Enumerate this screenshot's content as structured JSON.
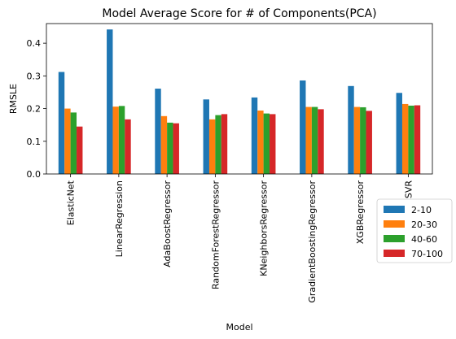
{
  "chart_data": {
    "type": "bar",
    "title": "Model Average Score for # of Components(PCA)",
    "xlabel": "Model",
    "ylabel": "RMSLE",
    "ylim": [
      0,
      0.46
    ],
    "yticks": [
      "0.0",
      "0.1",
      "0.2",
      "0.3",
      "0.4"
    ],
    "categories": [
      "ElasticNet",
      "LinearRegression",
      "AdaBoostRegressor",
      "RandomForestRegressor",
      "KNeighborsRegressor",
      "GradientBoostingRegressor",
      "XGBRegressor",
      "SVR"
    ],
    "series": [
      {
        "name": "2-10",
        "color": "#1f77b4",
        "values": [
          0.312,
          0.442,
          0.261,
          0.228,
          0.234,
          0.286,
          0.269,
          0.248
        ]
      },
      {
        "name": "20-30",
        "color": "#ff7f0e",
        "values": [
          0.2,
          0.206,
          0.177,
          0.167,
          0.194,
          0.205,
          0.205,
          0.214
        ]
      },
      {
        "name": "40-60",
        "color": "#2ca02c",
        "values": [
          0.188,
          0.208,
          0.157,
          0.18,
          0.185,
          0.205,
          0.204,
          0.209
        ]
      },
      {
        "name": "70-100",
        "color": "#d62728",
        "values": [
          0.145,
          0.167,
          0.155,
          0.183,
          0.183,
          0.198,
          0.193,
          0.21
        ]
      }
    ],
    "legend_position": "right",
    "grid": false
  }
}
